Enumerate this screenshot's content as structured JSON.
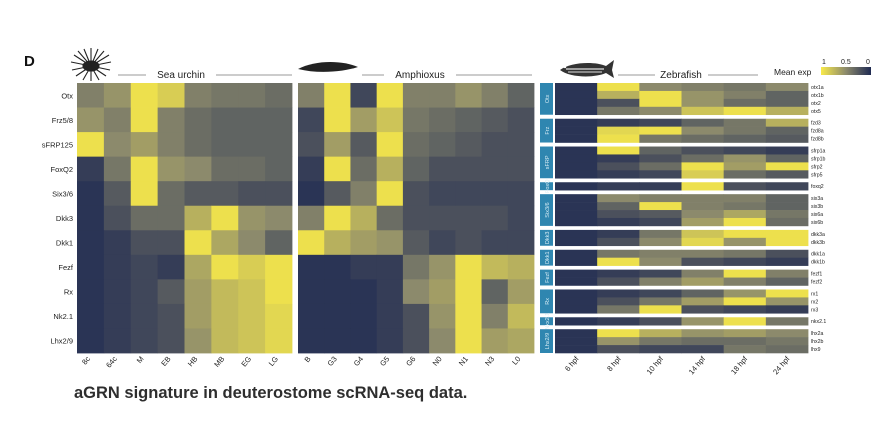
{
  "panel_label": "D",
  "caption": "aGRN signature in deuterostome scRNA-seq data.",
  "colors": {
    "low": "#1f2a52",
    "mid": "#8c8a6c",
    "high": "#f8ea4a",
    "band": "#2f86b0",
    "band_text": "#d9eef6"
  },
  "chart_data": [
    {
      "type": "heatmap",
      "title": "Sea urchin",
      "rows": [
        "Otx",
        "Frz5/8",
        "sFRP125",
        "FoxQ2",
        "Six3/6",
        "Dkk3",
        "Dkk1",
        "Fezf",
        "Rx",
        "Nk2.1",
        "Lhx2/9"
      ],
      "columns": [
        "8c",
        "64c",
        "M",
        "EB",
        "HB",
        "MB",
        "EG",
        "LG"
      ],
      "values": [
        [
          0.45,
          0.55,
          0.95,
          0.85,
          0.45,
          0.4,
          0.4,
          0.35
        ],
        [
          0.55,
          0.45,
          0.95,
          0.45,
          0.35,
          0.3,
          0.3,
          0.3
        ],
        [
          0.95,
          0.5,
          0.6,
          0.45,
          0.35,
          0.3,
          0.3,
          0.3
        ],
        [
          0.1,
          0.4,
          0.95,
          0.55,
          0.5,
          0.35,
          0.35,
          0.3
        ],
        [
          0.05,
          0.25,
          0.95,
          0.35,
          0.25,
          0.25,
          0.2,
          0.2
        ],
        [
          0.05,
          0.2,
          0.35,
          0.35,
          0.7,
          0.95,
          0.55,
          0.5
        ],
        [
          0.05,
          0.1,
          0.2,
          0.2,
          0.95,
          0.65,
          0.5,
          0.3
        ],
        [
          0.05,
          0.1,
          0.15,
          0.1,
          0.65,
          0.95,
          0.85,
          0.95
        ],
        [
          0.05,
          0.1,
          0.15,
          0.25,
          0.6,
          0.75,
          0.8,
          0.95
        ],
        [
          0.05,
          0.1,
          0.15,
          0.2,
          0.6,
          0.75,
          0.8,
          0.9
        ],
        [
          0.05,
          0.1,
          0.15,
          0.2,
          0.55,
          0.75,
          0.8,
          0.9
        ]
      ]
    },
    {
      "type": "heatmap",
      "title": "Amphioxus",
      "rows": [
        "Otx",
        "Frz5/8",
        "sFRP125",
        "FoxQ2",
        "Six3/6",
        "Dkk3",
        "Dkk1",
        "Fezf",
        "Rx",
        "Nk2.1",
        "Lhx2/9"
      ],
      "columns": [
        "B",
        "G3",
        "G4",
        "G5",
        "G6",
        "N0",
        "N1",
        "N3",
        "L0"
      ],
      "values": [
        [
          0.45,
          0.95,
          0.15,
          0.95,
          0.45,
          0.45,
          0.55,
          0.45,
          0.3
        ],
        [
          0.15,
          0.95,
          0.6,
          0.8,
          0.4,
          0.35,
          0.3,
          0.25,
          0.2
        ],
        [
          0.2,
          0.6,
          0.25,
          0.95,
          0.35,
          0.3,
          0.25,
          0.2,
          0.2
        ],
        [
          0.1,
          0.95,
          0.35,
          0.7,
          0.3,
          0.2,
          0.2,
          0.2,
          0.2
        ],
        [
          0.05,
          0.25,
          0.45,
          0.95,
          0.2,
          0.15,
          0.15,
          0.15,
          0.15
        ],
        [
          0.45,
          0.95,
          0.7,
          0.35,
          0.2,
          0.2,
          0.2,
          0.2,
          0.15
        ],
        [
          0.95,
          0.7,
          0.6,
          0.55,
          0.25,
          0.15,
          0.2,
          0.15,
          0.15
        ],
        [
          0.05,
          0.05,
          0.1,
          0.1,
          0.4,
          0.55,
          0.95,
          0.75,
          0.7
        ],
        [
          0.05,
          0.05,
          0.05,
          0.1,
          0.5,
          0.6,
          0.95,
          0.3,
          0.6
        ],
        [
          0.05,
          0.05,
          0.05,
          0.1,
          0.2,
          0.55,
          0.95,
          0.45,
          0.75
        ],
        [
          0.05,
          0.05,
          0.05,
          0.1,
          0.2,
          0.5,
          0.95,
          0.6,
          0.65
        ]
      ]
    },
    {
      "type": "heatmap",
      "title": "Zebrafish",
      "columns": [
        "6 hpf",
        "8 hpf",
        "10 hpf",
        "14 hpf",
        "18 hpf",
        "24 hpf"
      ],
      "legend": {
        "title": "Mean exp",
        "ticks": [
          "1",
          "0.5",
          "0"
        ]
      },
      "groups": [
        {
          "name": "Otx",
          "genes": [
            "otx1a",
            "otx1b",
            "otx2",
            "otx5"
          ],
          "values": [
            [
              0.05,
              0.95,
              0.5,
              0.45,
              0.4,
              0.5
            ],
            [
              0.05,
              0.7,
              0.95,
              0.55,
              0.45,
              0.3
            ],
            [
              0.05,
              0.2,
              0.95,
              0.55,
              0.35,
              0.3
            ],
            [
              0.05,
              0.4,
              0.5,
              0.8,
              0.95,
              0.7
            ]
          ]
        },
        {
          "name": "Frz",
          "genes": [
            "fzd3",
            "fzd8a",
            "fzd8b"
          ],
          "values": [
            [
              0.05,
              0.1,
              0.15,
              0.3,
              0.4,
              0.7
            ],
            [
              0.05,
              0.9,
              0.95,
              0.5,
              0.4,
              0.3
            ],
            [
              0.05,
              0.95,
              0.4,
              0.35,
              0.3,
              0.25
            ]
          ]
        },
        {
          "name": "sFRP",
          "genes": [
            "sfrp1a",
            "sfrp1b",
            "sfrp2",
            "sfrp5"
          ],
          "values": [
            [
              0.05,
              0.95,
              0.3,
              0.2,
              0.15,
              0.1
            ],
            [
              0.05,
              0.1,
              0.2,
              0.35,
              0.55,
              0.3
            ],
            [
              0.05,
              0.2,
              0.35,
              0.95,
              0.6,
              0.95
            ],
            [
              0.05,
              0.1,
              0.15,
              0.85,
              0.35,
              0.25
            ]
          ]
        },
        {
          "name": "FoxQ",
          "genes": [
            "foxq2"
          ],
          "values": [
            [
              0.05,
              0.1,
              0.1,
              0.95,
              0.2,
              0.15
            ]
          ]
        },
        {
          "name": "Six3/6",
          "genes": [
            "six3a",
            "six3b",
            "six6a",
            "six6b"
          ],
          "values": [
            [
              0.05,
              0.5,
              0.45,
              0.45,
              0.45,
              0.3
            ],
            [
              0.05,
              0.3,
              0.95,
              0.45,
              0.4,
              0.3
            ],
            [
              0.05,
              0.2,
              0.25,
              0.5,
              0.65,
              0.4
            ],
            [
              0.05,
              0.1,
              0.15,
              0.6,
              0.95,
              0.35
            ]
          ]
        },
        {
          "name": "Dkk3",
          "genes": [
            "dkk3a",
            "dkk3b"
          ],
          "values": [
            [
              0.05,
              0.1,
              0.4,
              0.8,
              0.95,
              0.95
            ],
            [
              0.05,
              0.2,
              0.5,
              0.9,
              0.55,
              0.95
            ]
          ]
        },
        {
          "name": "Dkk1",
          "genes": [
            "dkk1a",
            "dkk1b"
          ],
          "values": [
            [
              0.05,
              0.4,
              0.45,
              0.45,
              0.4,
              0.2
            ],
            [
              0.05,
              0.95,
              0.5,
              0.2,
              0.15,
              0.1
            ]
          ]
        },
        {
          "name": "Fezf",
          "genes": [
            "fezf1",
            "fezf2"
          ],
          "values": [
            [
              0.05,
              0.1,
              0.15,
              0.45,
              0.95,
              0.45
            ],
            [
              0.05,
              0.2,
              0.45,
              0.6,
              0.45,
              0.3
            ]
          ]
        },
        {
          "name": "Rx",
          "genes": [
            "rx1",
            "rx2",
            "rx3"
          ],
          "values": [
            [
              0.05,
              0.1,
              0.15,
              0.3,
              0.55,
              0.95
            ],
            [
              0.05,
              0.2,
              0.4,
              0.6,
              0.95,
              0.55
            ],
            [
              0.05,
              0.4,
              0.95,
              0.2,
              0.15,
              0.1
            ]
          ]
        },
        {
          "name": "Nkx2.1",
          "genes": [
            "nkx2.1"
          ],
          "values": [
            [
              0.05,
              0.1,
              0.2,
              0.55,
              0.95,
              0.4
            ]
          ]
        },
        {
          "name": "Lhx2/9",
          "genes": [
            "lhx2a",
            "lhx2b",
            "lhx9"
          ],
          "values": [
            [
              0.05,
              0.95,
              0.7,
              0.55,
              0.6,
              0.5
            ],
            [
              0.05,
              0.55,
              0.4,
              0.35,
              0.35,
              0.4
            ],
            [
              0.05,
              0.2,
              0.15,
              0.15,
              0.4,
              0.35
            ]
          ]
        }
      ]
    }
  ]
}
